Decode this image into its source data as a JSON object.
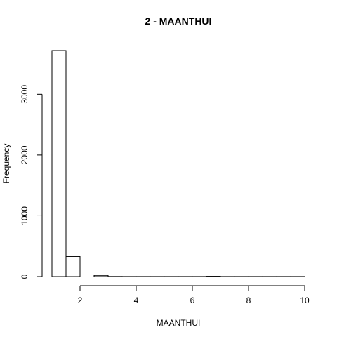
{
  "chart_data": {
    "type": "bar",
    "title": "2 - MAANTHUI",
    "xlabel": "MAANTHUI",
    "ylabel": "Frequency",
    "xlim": [
      1,
      10
    ],
    "ylim": [
      0,
      3720
    ],
    "x_ticks": [
      2,
      4,
      6,
      8,
      10
    ],
    "y_ticks": [
      0,
      1000,
      2000,
      3000
    ],
    "bins": [
      {
        "x0": 1.0,
        "x1": 1.5,
        "count": 3720
      },
      {
        "x0": 1.5,
        "x1": 2.0,
        "count": 330
      },
      {
        "x0": 2.0,
        "x1": 2.5,
        "count": 0
      },
      {
        "x0": 2.5,
        "x1": 3.0,
        "count": 20
      },
      {
        "x0": 3.0,
        "x1": 3.5,
        "count": 2
      },
      {
        "x0": 3.5,
        "x1": 4.0,
        "count": 1
      },
      {
        "x0": 4.0,
        "x1": 4.5,
        "count": 1
      },
      {
        "x0": 4.5,
        "x1": 5.0,
        "count": 1
      },
      {
        "x0": 5.0,
        "x1": 5.5,
        "count": 1
      },
      {
        "x0": 5.5,
        "x1": 6.0,
        "count": 1
      },
      {
        "x0": 6.0,
        "x1": 6.5,
        "count": 1
      },
      {
        "x0": 6.5,
        "x1": 7.0,
        "count": 5
      },
      {
        "x0": 7.0,
        "x1": 7.5,
        "count": 1
      },
      {
        "x0": 7.5,
        "x1": 8.0,
        "count": 1
      },
      {
        "x0": 8.0,
        "x1": 8.5,
        "count": 1
      },
      {
        "x0": 8.5,
        "x1": 9.0,
        "count": 1
      },
      {
        "x0": 9.0,
        "x1": 9.5,
        "count": 1
      },
      {
        "x0": 9.5,
        "x1": 10.0,
        "count": 1
      }
    ],
    "grid": false,
    "legend": "none"
  }
}
